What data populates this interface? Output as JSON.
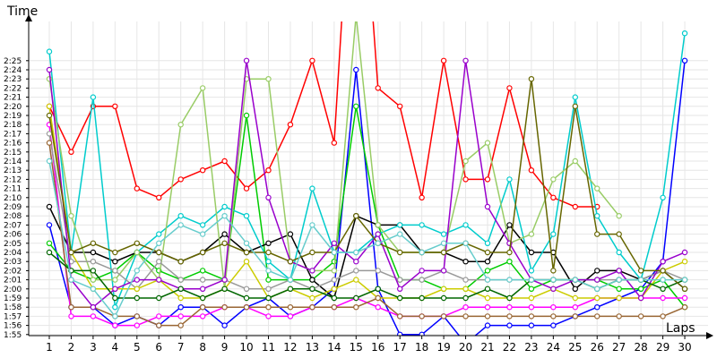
{
  "chart_data": {
    "type": "line",
    "xlabel": "Laps",
    "ylabel": "Time",
    "x": [
      1,
      2,
      3,
      4,
      5,
      6,
      7,
      8,
      9,
      10,
      11,
      12,
      13,
      14,
      15,
      16,
      17,
      18,
      19,
      20,
      21,
      22,
      23,
      24,
      25,
      26,
      27,
      28,
      29,
      30
    ],
    "y_tick_labels": [
      "1:55",
      "1:56",
      "1:57",
      "1:58",
      "1:59",
      "2:00",
      "2:01",
      "2:02",
      "2:03",
      "2:04",
      "2:05",
      "2:06",
      "2:07",
      "2:08",
      "2:09",
      "2:10",
      "2:11",
      "2:12",
      "2:13",
      "2:14",
      "2:15",
      "2:16",
      "2:17",
      "2:18",
      "2:19",
      "2:20",
      "2:21",
      "2:22",
      "2:23",
      "2:24",
      "2:25"
    ],
    "ylim_seconds": [
      114,
      147
    ],
    "grid": true,
    "legend": "none",
    "series": [
      {
        "color": "#ff0000",
        "values": [
          140,
          135,
          140,
          140,
          131,
          130,
          132,
          133,
          134,
          131,
          133,
          138,
          145,
          136,
          175,
          142,
          140,
          130,
          145,
          132,
          132,
          142,
          133,
          130,
          129,
          129,
          null,
          null,
          null,
          null
        ]
      },
      {
        "color": "#0000ff",
        "values": [
          127,
          118,
          118,
          116,
          117,
          116,
          118,
          118,
          116,
          118,
          119,
          117,
          118,
          120,
          144,
          120,
          115,
          115,
          117,
          114,
          116,
          116,
          116,
          116,
          117,
          118,
          119,
          120,
          123,
          145
        ]
      },
      {
        "color": "#00cc00",
        "values": [
          125,
          122,
          121,
          122,
          124,
          122,
          121,
          122,
          121,
          139,
          121,
          121,
          121,
          123,
          140,
          127,
          121,
          121,
          120,
          120,
          122,
          123,
          120,
          121,
          121,
          121,
          120,
          120,
          121,
          118
        ]
      },
      {
        "color": "#000000",
        "values": [
          129,
          124,
          124,
          123,
          124,
          124,
          123,
          124,
          126,
          124,
          125,
          126,
          121,
          119,
          128,
          127,
          127,
          124,
          124,
          123,
          123,
          127,
          124,
          124,
          120,
          122,
          122,
          121,
          122,
          120
        ]
      },
      {
        "color": "#ff00ff",
        "values": [
          138,
          117,
          117,
          116,
          116,
          117,
          117,
          117,
          118,
          118,
          117,
          117,
          118,
          118,
          119,
          118,
          117,
          117,
          117,
          118,
          118,
          118,
          118,
          118,
          118,
          119,
          119,
          119,
          119,
          119
        ]
      },
      {
        "color": "#00cccc",
        "values": [
          146,
          124,
          141,
          118,
          124,
          126,
          128,
          127,
          129,
          128,
          123,
          121,
          131,
          124,
          124,
          126,
          127,
          127,
          126,
          127,
          125,
          132,
          122,
          126,
          141,
          128,
          124,
          121,
          130,
          148
        ]
      },
      {
        "color": "#99cc66",
        "values": [
          143,
          128,
          121,
          121,
          124,
          121,
          138,
          142,
          120,
          143,
          143,
          123,
          122,
          122,
          150,
          127,
          124,
          124,
          124,
          134,
          136,
          125,
          126,
          132,
          134,
          131,
          128,
          null,
          null,
          null
        ]
      },
      {
        "color": "#999999",
        "values": [
          137,
          123,
          123,
          122,
          120,
          123,
          121,
          121,
          121,
          120,
          120,
          121,
          120,
          121,
          122,
          122,
          121,
          121,
          122,
          121,
          121,
          121,
          121,
          121,
          121,
          121,
          121,
          121,
          122,
          121
        ]
      },
      {
        "color": "#cccc00",
        "values": [
          140,
          124,
          120,
          120,
          120,
          121,
          119,
          119,
          120,
          123,
          119,
          120,
          119,
          120,
          121,
          119,
          119,
          119,
          120,
          120,
          119,
          119,
          119,
          120,
          119,
          119,
          119,
          119,
          122,
          123
        ]
      },
      {
        "color": "#996633",
        "values": [
          136,
          118,
          118,
          117,
          117,
          116,
          116,
          118,
          118,
          118,
          118,
          118,
          118,
          118,
          118,
          119,
          117,
          117,
          117,
          117,
          117,
          117,
          117,
          117,
          117,
          117,
          117,
          117,
          117,
          118
        ]
      },
      {
        "color": "#9900cc",
        "values": [
          144,
          121,
          118,
          120,
          121,
          121,
          120,
          120,
          121,
          145,
          130,
          123,
          122,
          125,
          123,
          126,
          120,
          122,
          122,
          145,
          129,
          125,
          121,
          120,
          121,
          121,
          122,
          119,
          123,
          124
        ]
      },
      {
        "color": "#006600",
        "values": [
          124,
          122,
          122,
          119,
          119,
          119,
          120,
          119,
          120,
          119,
          119,
          120,
          120,
          119,
          119,
          120,
          119,
          119,
          119,
          119,
          120,
          119,
          121,
          121,
          121,
          120,
          121,
          121,
          120,
          121
        ]
      },
      {
        "color": "#666600",
        "values": [
          139,
          124,
          125,
          124,
          125,
          124,
          123,
          124,
          125,
          124,
          124,
          123,
          124,
          124,
          128,
          125,
          124,
          124,
          124,
          125,
          124,
          124,
          143,
          122,
          140,
          126,
          126,
          122,
          122,
          120
        ]
      },
      {
        "color": "#66cccc",
        "values": [
          134,
          121,
          120,
          117,
          122,
          125,
          127,
          126,
          128,
          125,
          122,
          121,
          127,
          124,
          124,
          125,
          126,
          124,
          125,
          125,
          121,
          121,
          121,
          121,
          121,
          120,
          121,
          121,
          121,
          121
        ]
      }
    ]
  }
}
